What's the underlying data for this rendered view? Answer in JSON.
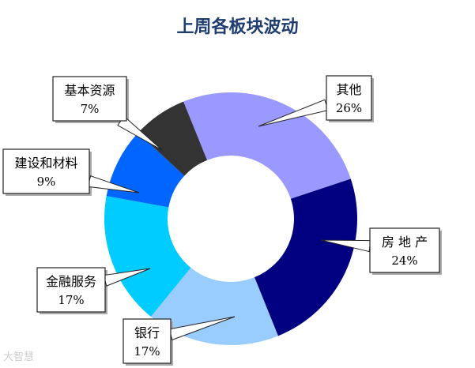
{
  "chart_data": {
    "type": "pie",
    "title": "上周各板块波动",
    "series": [
      {
        "name": "其他",
        "value": 26,
        "label": "26%",
        "color": "#9999ff"
      },
      {
        "name": "房 地 产",
        "value": 24,
        "label": "24%",
        "color": "#000080"
      },
      {
        "name": "银行",
        "value": 17,
        "label": "17%",
        "color": "#99ccff"
      },
      {
        "name": "金融服务",
        "value": 17,
        "label": "17%",
        "color": "#00ccff"
      },
      {
        "name": "建设和材料",
        "value": 9,
        "label": "9%",
        "color": "#0066ff"
      },
      {
        "name": "基本资源",
        "value": 7,
        "label": "7%",
        "color": "#333333"
      }
    ]
  },
  "watermark": "大智慧"
}
